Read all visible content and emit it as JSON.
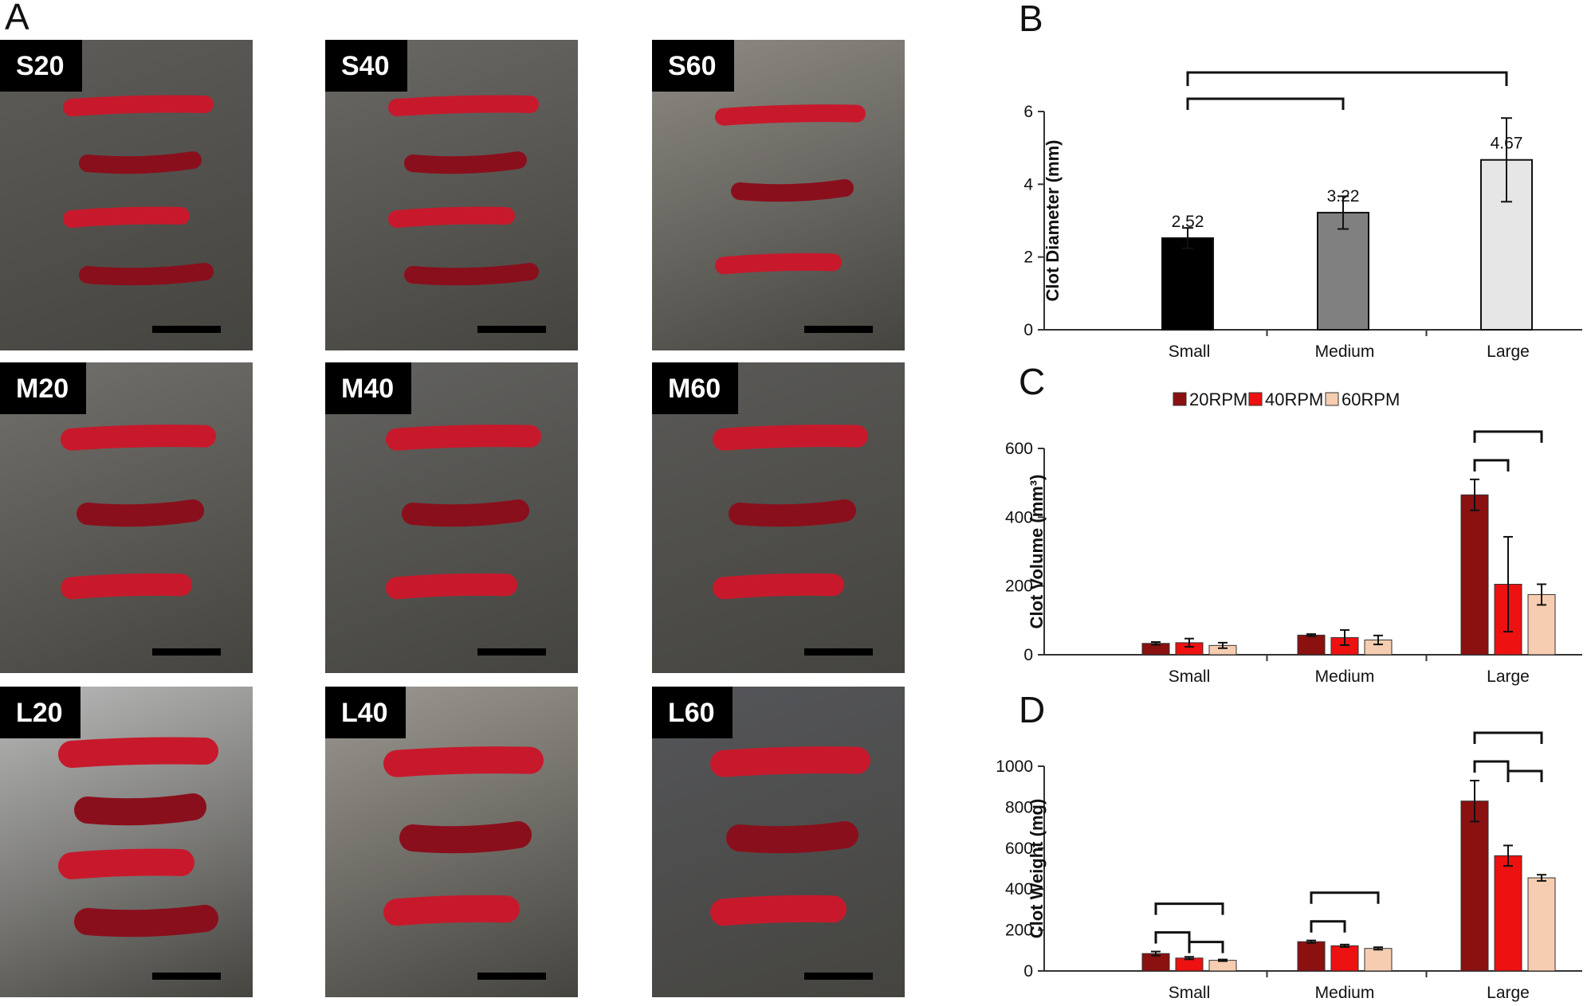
{
  "panel_letters": [
    "A",
    "B",
    "C",
    "D"
  ],
  "photos": [
    {
      "label": "S20",
      "bg": "#5e5c59",
      "clots": 4
    },
    {
      "label": "S40",
      "bg": "#6a6865",
      "clots": 4
    },
    {
      "label": "S60",
      "bg": "#8e8b84",
      "clots": 3
    },
    {
      "label": "M20",
      "bg": "#72706c",
      "clots": 3
    },
    {
      "label": "M40",
      "bg": "#636260",
      "clots": 3
    },
    {
      "label": "M60",
      "bg": "#5a5957",
      "clots": 3
    },
    {
      "label": "L20",
      "bg": "#b9b9b9",
      "clots": 4
    },
    {
      "label": "L40",
      "bg": "#9c9891",
      "clots": 3
    },
    {
      "label": "L60",
      "bg": "#55565a",
      "clots": 3
    }
  ],
  "colors": {
    "clot": "#c8192c",
    "clot_dark": "#8a0f1c",
    "rpm20": "#8b1010",
    "rpm40": "#ee1111",
    "rpm60": "#f6cdb0",
    "small": "#000000",
    "medium": "#808080",
    "large": "#e6e6e6"
  },
  "chart_data": [
    {
      "panel": "B",
      "type": "bar",
      "categories": [
        "Small",
        "Medium",
        "Large"
      ],
      "values": [
        2.52,
        3.22,
        4.67
      ],
      "errors": [
        0.28,
        0.45,
        1.15
      ],
      "data_labels": [
        "2.52",
        "3.22",
        "4.67"
      ],
      "ylabel": "Clot Diameter (mm)",
      "ylim": [
        0,
        6
      ],
      "yticks": [
        "0",
        "2",
        "4",
        "6"
      ],
      "significance": [
        [
          "Small",
          "Medium"
        ],
        [
          "Small",
          "Large"
        ]
      ]
    },
    {
      "panel": "C",
      "type": "bar",
      "categories": [
        "Small",
        "Medium",
        "Large"
      ],
      "series": [
        {
          "name": "20RPM",
          "values": [
            33,
            57,
            465
          ],
          "errors": [
            4,
            3,
            45
          ]
        },
        {
          "name": "40RPM",
          "values": [
            35,
            50,
            205
          ],
          "errors": [
            12,
            22,
            138
          ]
        },
        {
          "name": "60RPM",
          "values": [
            27,
            43,
            175
          ],
          "errors": [
            8,
            13,
            30
          ]
        }
      ],
      "ylabel": "Clot Volume (mm³)",
      "ylim": [
        0,
        600
      ],
      "yticks": [
        "0",
        "200",
        "400",
        "600"
      ],
      "legend_position": "top",
      "significance": [
        [
          "Large",
          "20RPM",
          "40RPM"
        ],
        [
          "Large",
          "20RPM",
          "60RPM"
        ]
      ]
    },
    {
      "panel": "D",
      "type": "bar",
      "categories": [
        "Small",
        "Medium",
        "Large"
      ],
      "series": [
        {
          "name": "20RPM",
          "values": [
            85,
            143,
            830
          ],
          "errors": [
            10,
            6,
            100
          ]
        },
        {
          "name": "40RPM",
          "values": [
            63,
            123,
            563
          ],
          "errors": [
            6,
            6,
            50
          ]
        },
        {
          "name": "60RPM",
          "values": [
            52,
            110,
            455
          ],
          "errors": [
            4,
            6,
            15
          ]
        }
      ],
      "ylabel": "Clot Weight (mg)",
      "ylim": [
        0,
        1000
      ],
      "yticks": [
        "0",
        "200",
        "400",
        "600",
        "800",
        "1000"
      ],
      "significance": [
        [
          "Small",
          "20RPM",
          "40RPM"
        ],
        [
          "Small",
          "20RPM",
          "60RPM"
        ],
        [
          "Small",
          "40RPM",
          "60RPM"
        ],
        [
          "Medium",
          "20RPM",
          "40RPM"
        ],
        [
          "Medium",
          "20RPM",
          "60RPM"
        ],
        [
          "Large",
          "20RPM",
          "40RPM"
        ],
        [
          "Large",
          "20RPM",
          "60RPM"
        ],
        [
          "Large",
          "40RPM",
          "60RPM"
        ]
      ]
    }
  ]
}
